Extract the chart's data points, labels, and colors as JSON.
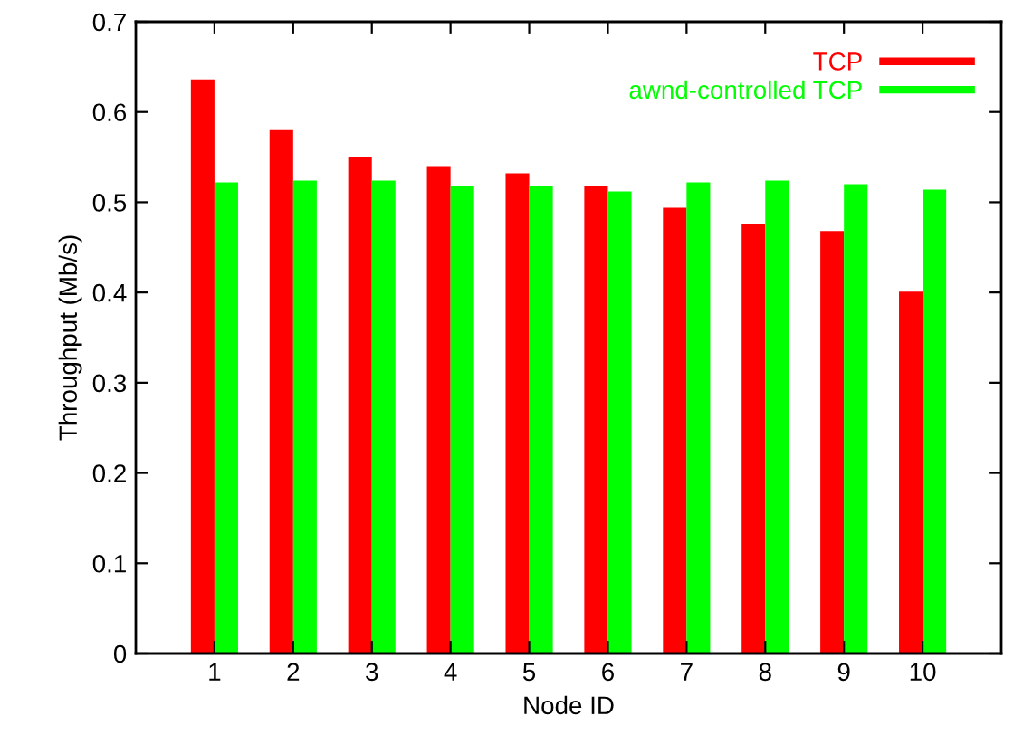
{
  "chart_data": {
    "type": "bar",
    "xlabel": "Node ID",
    "ylabel": "Throughput (Mb/s)",
    "categories": [
      "1",
      "2",
      "3",
      "4",
      "5",
      "6",
      "7",
      "8",
      "9",
      "10"
    ],
    "series": [
      {
        "name": "TCP",
        "color": "#ff0000",
        "values": [
          0.636,
          0.58,
          0.55,
          0.54,
          0.532,
          0.518,
          0.494,
          0.476,
          0.468,
          0.401
        ]
      },
      {
        "name": "awnd-controlled TCP",
        "color": "#00ff00",
        "values": [
          0.522,
          0.524,
          0.524,
          0.518,
          0.518,
          0.512,
          0.522,
          0.524,
          0.52,
          0.514
        ]
      }
    ],
    "ylim": [
      0,
      0.7
    ],
    "yticks": [
      0,
      0.1,
      0.2,
      0.3,
      0.4,
      0.5,
      0.6,
      0.7
    ],
    "grid": false,
    "legend": "top right"
  }
}
